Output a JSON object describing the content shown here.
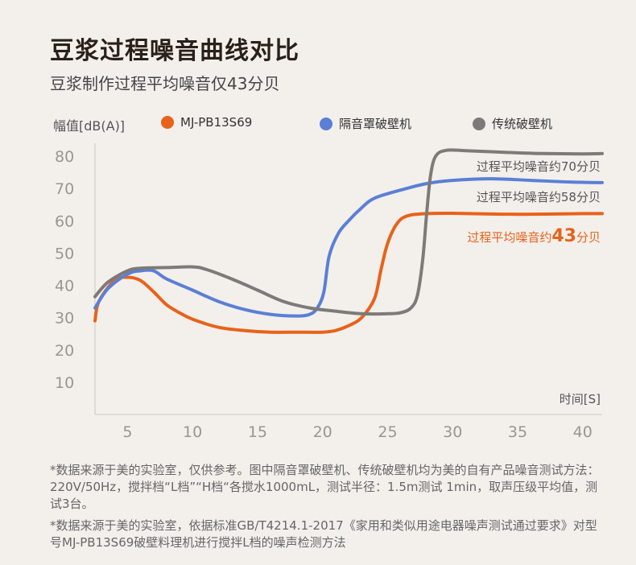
{
  "title": "豆浆过程噪音曲线对比",
  "subtitle": "豆浆制作过程平均噪音仅43分贝",
  "colors": {
    "orange": "#e8621a",
    "blue": "#5b7fd6",
    "gray": "#7d7a78",
    "tick": "#9a9590",
    "axis": "#d9d4ce"
  },
  "chart_data": {
    "type": "line",
    "ylabel": "幅值[dB(A)]",
    "xlabel": "时间[S]",
    "xlim": [
      2.5,
      41.5
    ],
    "ylim": [
      0,
      82
    ],
    "xticks": [
      5,
      10,
      15,
      20,
      25,
      30,
      35,
      40
    ],
    "yticks": [
      10,
      20,
      30,
      40,
      50,
      60,
      70,
      80
    ],
    "series": [
      {
        "name": "MJ-PB13S69",
        "color": "#e8621a",
        "annotation": {
          "prefix": "过程平均噪音约",
          "value": "43",
          "suffix": "分贝",
          "highlight": true
        },
        "points": [
          [
            2.5,
            29
          ],
          [
            2.8,
            35
          ],
          [
            4,
            41.5
          ],
          [
            5,
            42.5
          ],
          [
            6,
            41.5
          ],
          [
            7,
            38
          ],
          [
            8,
            34
          ],
          [
            9,
            31.5
          ],
          [
            10,
            29.5
          ],
          [
            12,
            27
          ],
          [
            14,
            26
          ],
          [
            16,
            25.5
          ],
          [
            18,
            25.5
          ],
          [
            20,
            25.5
          ],
          [
            21,
            26
          ],
          [
            22,
            27.5
          ],
          [
            23,
            30
          ],
          [
            24,
            36
          ],
          [
            24.5,
            45
          ],
          [
            25,
            53
          ],
          [
            25.7,
            59
          ],
          [
            26.5,
            61.5
          ],
          [
            28,
            62.2
          ],
          [
            30,
            62.3
          ],
          [
            35,
            62
          ],
          [
            40,
            62.2
          ],
          [
            41.5,
            62.2
          ]
        ]
      },
      {
        "name": "隔音罩破壁机",
        "color": "#5b7fd6",
        "annotation": {
          "prefix": "过程平均噪音约",
          "value": "58",
          "suffix": "分贝",
          "highlight": false
        },
        "points": [
          [
            2.5,
            33
          ],
          [
            3.5,
            39
          ],
          [
            5,
            43.5
          ],
          [
            6,
            44.5
          ],
          [
            7,
            44.5
          ],
          [
            8,
            42
          ],
          [
            10,
            38.5
          ],
          [
            12,
            35
          ],
          [
            14,
            32.5
          ],
          [
            16,
            31
          ],
          [
            18,
            30.5
          ],
          [
            19,
            31
          ],
          [
            19.6,
            33
          ],
          [
            20.1,
            38
          ],
          [
            20.5,
            49
          ],
          [
            21.2,
            56
          ],
          [
            22,
            60
          ],
          [
            23,
            64
          ],
          [
            24,
            67
          ],
          [
            26,
            69.5
          ],
          [
            28,
            71.5
          ],
          [
            30,
            72.5
          ],
          [
            33,
            73
          ],
          [
            36,
            72.5
          ],
          [
            39,
            72
          ],
          [
            41.5,
            71.8
          ]
        ]
      },
      {
        "name": "传统破壁机",
        "color": "#7d7a78",
        "annotation": {
          "prefix": "过程平均噪音约",
          "value": "70",
          "suffix": "分贝",
          "highlight": false
        },
        "points": [
          [
            2.5,
            36.5
          ],
          [
            3.5,
            41
          ],
          [
            5,
            44.5
          ],
          [
            6,
            45.3
          ],
          [
            8,
            45.5
          ],
          [
            10,
            45.7
          ],
          [
            11,
            45
          ],
          [
            13,
            42
          ],
          [
            15,
            38.5
          ],
          [
            17,
            35
          ],
          [
            19,
            33
          ],
          [
            21,
            32
          ],
          [
            23,
            31.2
          ],
          [
            25,
            31.2
          ],
          [
            26,
            31.5
          ],
          [
            26.8,
            33
          ],
          [
            27.3,
            37
          ],
          [
            27.7,
            48
          ],
          [
            28,
            62
          ],
          [
            28.3,
            74
          ],
          [
            28.7,
            80
          ],
          [
            29.5,
            81.8
          ],
          [
            31,
            81.7
          ],
          [
            34,
            81.2
          ],
          [
            37,
            80.8
          ],
          [
            40,
            80.7
          ],
          [
            41.5,
            80.8
          ]
        ]
      }
    ]
  },
  "footnotes": [
    "*数据来源于美的实验室，仅供参考。图中隔音罩破壁机、传统破壁机均为美的自有产品噪音测试方法：220V/50Hz，搅拌档“L档”“H档“各搅水1000mL，测试半径：1.5m测试 1min，取声压级平均值，测试3台。",
    "*数据来源于美的实验室，依据标准GB/T4214.1-2017《家用和类似用途电器噪声测试通过要求》对型号MJ-PB13S69破壁料理机进行搅拌L档的噪声检测方法"
  ]
}
